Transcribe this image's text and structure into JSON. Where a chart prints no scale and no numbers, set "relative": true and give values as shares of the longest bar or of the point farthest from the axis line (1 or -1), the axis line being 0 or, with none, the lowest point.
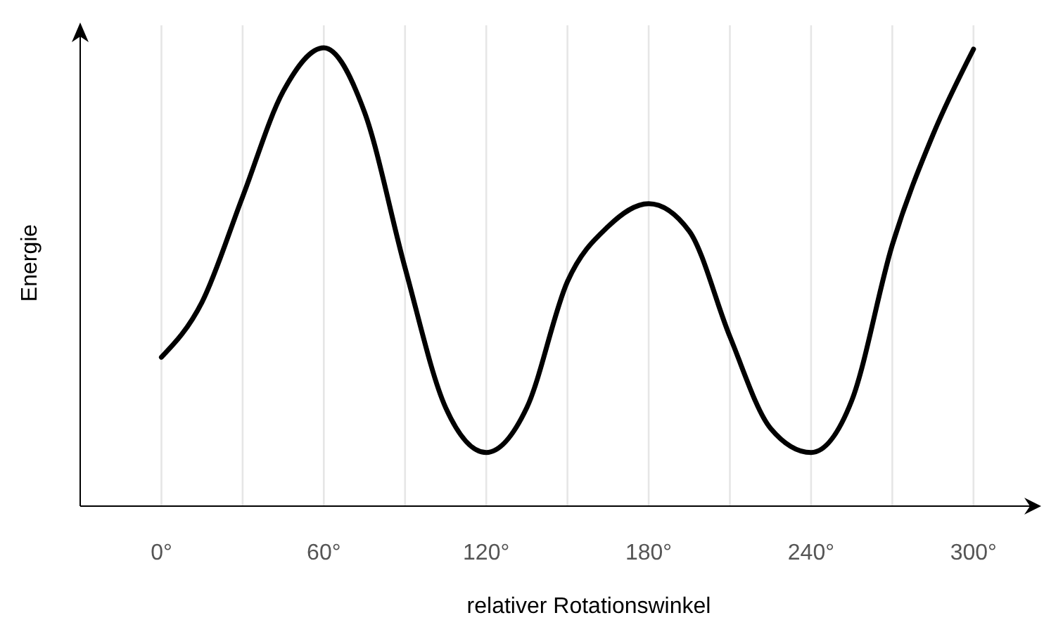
{
  "chart_data": {
    "type": "line",
    "relative": true,
    "xlabel": "relativer Rotationswinkel",
    "ylabel": "Energie",
    "xlim": [
      -30,
      325
    ],
    "xticks": [
      {
        "value": 0,
        "label": "0°"
      },
      {
        "value": 30,
        "label": null
      },
      {
        "value": 60,
        "label": "60°"
      },
      {
        "value": 90,
        "label": null
      },
      {
        "value": 120,
        "label": "120°"
      },
      {
        "value": 150,
        "label": null
      },
      {
        "value": 180,
        "label": "180°"
      },
      {
        "value": 210,
        "label": null
      },
      {
        "value": 240,
        "label": "240°"
      },
      {
        "value": 270,
        "label": null
      },
      {
        "value": 300,
        "label": "300°"
      }
    ],
    "x": [
      0,
      15,
      30,
      45,
      60,
      75,
      90,
      105,
      120,
      135,
      150,
      165,
      180,
      195,
      210,
      225,
      240,
      255,
      270,
      285,
      300
    ],
    "series": [
      {
        "color": "#000000",
        "values": [
          0.325,
          0.445,
          0.675,
          0.905,
          1.0,
          0.86,
          0.52,
          0.215,
          0.117,
          0.215,
          0.49,
          0.61,
          0.66,
          0.6,
          0.37,
          0.17,
          0.117,
          0.23,
          0.57,
          0.81,
          0.997
        ]
      }
    ],
    "grid": "x",
    "marker": "none",
    "line_style": "solid"
  }
}
